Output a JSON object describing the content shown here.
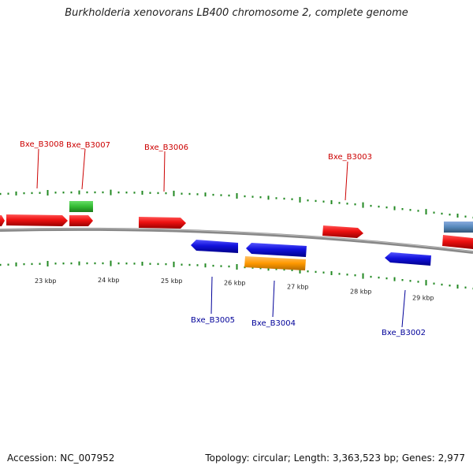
{
  "title": "Burkholderia xenovorans LB400 chromosome 2, complete genome",
  "accession_text": "Accession: NC_007952",
  "summary_text": "Topology: circular; Length: 3,363,523 bp; Genes: 2,977",
  "colors": {
    "forward": "#ee1111",
    "reverse": "#1111dd",
    "green": "#33bb33",
    "orange": "#ff9900",
    "steelblue": "#5588bb",
    "backbone": "#888888",
    "tick": "#228822",
    "forward_label": "#cc0000",
    "reverse_label": "#000099"
  },
  "ruler": {
    "unit": "kbp",
    "labels": [
      "23 kbp",
      "24 kbp",
      "25 kbp",
      "26 kbp",
      "27 kbp",
      "28 kbp",
      "29 kbp"
    ]
  },
  "genes": [
    {
      "label": "Bxe_B3008",
      "strand": "forward",
      "color": "forward"
    },
    {
      "label": "Bxe_B3007",
      "strand": "forward",
      "color": "forward"
    },
    {
      "label": "Bxe_B3006",
      "strand": "forward",
      "color": "forward"
    },
    {
      "label": "Bxe_B3005",
      "strand": "reverse",
      "color": "reverse"
    },
    {
      "label": "Bxe_B3004",
      "strand": "reverse",
      "color": "reverse"
    },
    {
      "label": "Bxe_B3003",
      "strand": "forward",
      "color": "forward"
    },
    {
      "label": "Bxe_B3002",
      "strand": "reverse",
      "color": "reverse"
    }
  ]
}
